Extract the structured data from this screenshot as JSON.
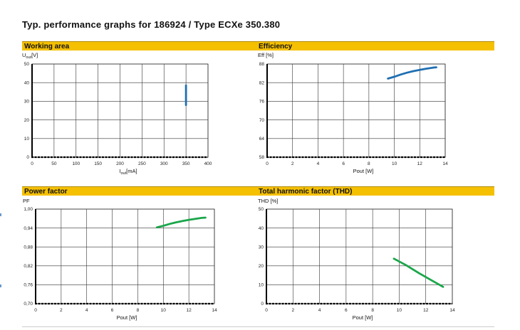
{
  "page": {
    "title": "Typ. performance graphs for 186924 / Type ECXe 350.380"
  },
  "panels": [
    {
      "title": "Working area"
    },
    {
      "title": "Efficiency"
    },
    {
      "title": "Power factor"
    },
    {
      "title": "Total harmonic factor (THD)"
    }
  ],
  "colors": {
    "header_bg": "#f5c000",
    "series_blue": "#1f6fb2",
    "series_green": "#1aa64a",
    "grid": "#333333"
  },
  "chart_data": [
    {
      "type": "line",
      "title": "Working area",
      "ylabel_main": "U",
      "ylabel_sub": "out",
      "ylabel_unit": "[V]",
      "xlabel_main": "I",
      "xlabel_sub": "out",
      "xlabel_unit": "[mA]",
      "xlim": [
        0,
        400
      ],
      "ylim": [
        0,
        50
      ],
      "xticks": [
        0,
        50,
        100,
        150,
        200,
        250,
        300,
        350,
        400
      ],
      "yticks": [
        0,
        10,
        20,
        30,
        40,
        50
      ],
      "xtick_labels": [
        "0",
        "50",
        "100",
        "150",
        "200",
        "250",
        "300",
        "350",
        "400"
      ],
      "ytick_labels": [
        "0",
        "10",
        "20",
        "30",
        "40",
        "50"
      ],
      "grid": true,
      "series": [
        {
          "color": "#1f6fb2",
          "x": [
            350,
            350
          ],
          "y": [
            28,
            38.5
          ]
        }
      ]
    },
    {
      "type": "line",
      "title": "Efficiency",
      "ylabel": "Eff [%]",
      "xlabel": "Pout [W]",
      "xlim": [
        0,
        14
      ],
      "ylim": [
        58,
        88
      ],
      "xticks": [
        0,
        2,
        4,
        6,
        8,
        10,
        12,
        14
      ],
      "yticks": [
        58,
        64,
        70,
        76,
        82,
        88
      ],
      "xtick_labels": [
        "0",
        "2",
        "4",
        "6",
        "8",
        "10",
        "12",
        "14"
      ],
      "ytick_labels": [
        "58",
        "64",
        "70",
        "76",
        "82",
        "88"
      ],
      "grid": true,
      "series": [
        {
          "color": "#1f6fb2",
          "x": [
            9.5,
            10.0,
            10.5,
            11.0,
            11.5,
            12.0,
            12.5,
            13.0,
            13.3
          ],
          "y": [
            83.3,
            83.9,
            84.6,
            85.2,
            85.7,
            86.1,
            86.5,
            86.8,
            86.95
          ]
        }
      ]
    },
    {
      "type": "line",
      "title": "Power factor",
      "ylabel": "PF",
      "xlabel": "Pout [W]",
      "xlim": [
        0,
        14
      ],
      "ylim": [
        0.7,
        1.0
      ],
      "xticks": [
        0,
        2,
        4,
        6,
        8,
        10,
        12,
        14
      ],
      "yticks": [
        0.7,
        0.76,
        0.82,
        0.88,
        0.94,
        1.0
      ],
      "xtick_labels": [
        "0",
        "2",
        "4",
        "6",
        "8",
        "10",
        "12",
        "14"
      ],
      "ytick_labels": [
        "0,70",
        "0,76",
        "0,82",
        "0,88",
        "0,94",
        "1,00"
      ],
      "grid": true,
      "series": [
        {
          "color": "#1aa64a",
          "x": [
            9.5,
            10.0,
            10.5,
            11.0,
            11.5,
            12.0,
            12.5,
            13.0,
            13.3
          ],
          "y": [
            0.942,
            0.947,
            0.953,
            0.958,
            0.962,
            0.966,
            0.969,
            0.972,
            0.973
          ]
        }
      ]
    },
    {
      "type": "line",
      "title": "Total harmonic factor (THD)",
      "ylabel": "THD [%]",
      "xlabel": "Pout [W]",
      "xlim": [
        0,
        14
      ],
      "ylim": [
        0,
        50
      ],
      "xticks": [
        0,
        2,
        4,
        6,
        8,
        10,
        12,
        14
      ],
      "yticks": [
        0,
        10,
        20,
        30,
        40,
        50
      ],
      "xtick_labels": [
        "0",
        "2",
        "4",
        "6",
        "8",
        "10",
        "12",
        "14"
      ],
      "ytick_labels": [
        "0",
        "10",
        "20",
        "30",
        "40",
        "50"
      ],
      "grid": true,
      "series": [
        {
          "color": "#1aa64a",
          "x": [
            9.6,
            10.5,
            11.5,
            12.5,
            13.3
          ],
          "y": [
            23.8,
            20.4,
            16.1,
            12.1,
            8.9
          ]
        }
      ]
    }
  ]
}
